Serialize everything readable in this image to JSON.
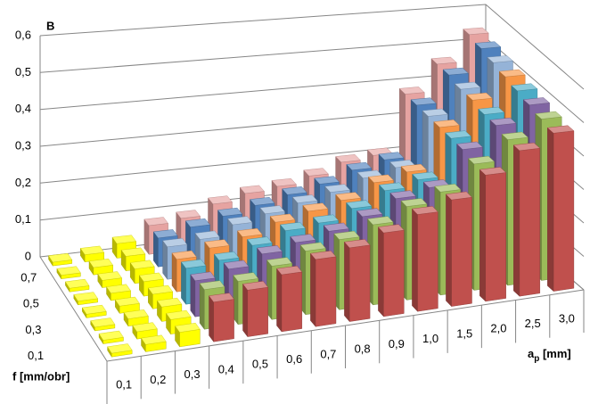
{
  "chart_data": {
    "type": "bar3d",
    "y_label": "B",
    "x_label": {
      "main": "a",
      "sub": "p",
      "rest": " [mm]"
    },
    "z_label": "f [mm/obr]",
    "categories": [
      "0,1",
      "0,2",
      "0,3",
      "0,4",
      "0,5",
      "0,6",
      "0,7",
      "0,8",
      "0,9",
      "1,0",
      "1,5",
      "2,0",
      "2,5",
      "3,0"
    ],
    "z_categories": [
      "0,1",
      null,
      "0,3",
      null,
      "0,5",
      null,
      "0,7",
      null
    ],
    "ylim": [
      0,
      0.6
    ],
    "yticks": [
      0,
      {
        "value": 0.1,
        "label": "0,1"
      },
      {
        "value": 0.2,
        "label": "0,2"
      },
      {
        "value": 0.3,
        "label": "0,3"
      },
      {
        "value": 0.4,
        "label": "0,4"
      },
      {
        "value": 0.5,
        "label": "0,5"
      },
      {
        "value": 0.6,
        "label": "0,6"
      }
    ],
    "grid": true,
    "series": [
      {
        "colors": [
          "#ffff00",
          "#ffff00",
          "#ffff00",
          "#c0504d",
          "#c0504d",
          "#c0504d",
          "#c0504d",
          "#c0504d",
          "#c0504d",
          "#c0504d",
          "#c0504d",
          "#c0504d",
          "#c0504d",
          "#c0504d"
        ],
        "values": [
          0.01,
          0.02,
          0.04,
          0.11,
          0.13,
          0.16,
          0.19,
          0.21,
          0.24,
          0.28,
          0.31,
          0.37,
          0.43,
          0.47
        ]
      },
      {
        "colors": [
          "#ffff00",
          "#ffff00",
          "#ffff00",
          "#9bbb59",
          "#9bbb59",
          "#9bbb59",
          "#9bbb59",
          "#9bbb59",
          "#9bbb59",
          "#9bbb59",
          "#9bbb59",
          "#9bbb59",
          "#9bbb59",
          "#9bbb59"
        ],
        "values": [
          0.01,
          0.02,
          0.04,
          0.11,
          0.12,
          0.15,
          0.18,
          0.2,
          0.23,
          0.27,
          0.3,
          0.37,
          0.43,
          0.48
        ]
      },
      {
        "colors": [
          "#ffff00",
          "#ffff00",
          "#ffff00",
          "#8064a2",
          "#8064a2",
          "#8064a2",
          "#8064a2",
          "#8064a2",
          "#8064a2",
          "#8064a2",
          "#8064a2",
          "#8064a2",
          "#8064a2",
          "#8064a2"
        ],
        "values": [
          0.01,
          0.02,
          0.04,
          0.1,
          0.12,
          0.15,
          0.17,
          0.19,
          0.22,
          0.26,
          0.28,
          0.38,
          0.44,
          0.49
        ]
      },
      {
        "colors": [
          "#ffff00",
          "#ffff00",
          "#ffff00",
          "#4bacc6",
          "#4bacc6",
          "#4bacc6",
          "#4bacc6",
          "#4bacc6",
          "#4bacc6",
          "#4bacc6",
          "#4bacc6",
          "#4bacc6",
          "#4bacc6",
          "#4bacc6"
        ],
        "values": [
          0.01,
          0.02,
          0.04,
          0.1,
          0.11,
          0.14,
          0.17,
          0.18,
          0.21,
          0.25,
          0.27,
          0.38,
          0.44,
          0.5
        ]
      },
      {
        "colors": [
          "#ffff00",
          "#ffff00",
          "#ffff00",
          "#f79646",
          "#f79646",
          "#f79646",
          "#f79646",
          "#f79646",
          "#f79646",
          "#f79646",
          "#f79646",
          "#f79646",
          "#f79646",
          "#f79646"
        ],
        "values": [
          0.01,
          0.02,
          0.04,
          0.09,
          0.11,
          0.13,
          0.16,
          0.18,
          0.2,
          0.24,
          0.26,
          0.38,
          0.45,
          0.51
        ]
      },
      {
        "colors": [
          "#ffff00",
          "#ffff00",
          "#ffff00",
          "#95b3d7",
          "#95b3d7",
          "#95b3d7",
          "#95b3d7",
          "#95b3d7",
          "#95b3d7",
          "#95b3d7",
          "#95b3d7",
          "#95b3d7",
          "#95b3d7",
          "#95b3d7"
        ],
        "values": [
          0.01,
          0.02,
          0.04,
          0.09,
          0.1,
          0.13,
          0.15,
          0.17,
          0.19,
          0.22,
          0.24,
          0.38,
          0.45,
          0.52
        ]
      },
      {
        "colors": [
          "#ffff00",
          "#ffff00",
          "#ffff00",
          "#4f81bd",
          "#4f81bd",
          "#4f81bd",
          "#4f81bd",
          "#4f81bd",
          "#4f81bd",
          "#4f81bd",
          "#4f81bd",
          "#4f81bd",
          "#4f81bd",
          "#4f81bd"
        ],
        "values": [
          0.01,
          0.02,
          0.04,
          0.08,
          0.1,
          0.12,
          0.14,
          0.16,
          0.18,
          0.21,
          0.23,
          0.38,
          0.46,
          0.53
        ]
      },
      {
        "colors": [
          "#ffff00",
          "#ffff00",
          "#ffff00",
          "#e6a3a1",
          "#e6a3a1",
          "#e6a3a1",
          "#e6a3a1",
          "#e6a3a1",
          "#e6a3a1",
          "#e6a3a1",
          "#e6a3a1",
          "#e6a3a1",
          "#e6a3a1",
          "#e6a3a1"
        ],
        "values": [
          0.01,
          0.02,
          0.04,
          0.08,
          0.09,
          0.12,
          0.14,
          0.15,
          0.17,
          0.2,
          0.21,
          0.38,
          0.46,
          0.54
        ]
      }
    ]
  }
}
